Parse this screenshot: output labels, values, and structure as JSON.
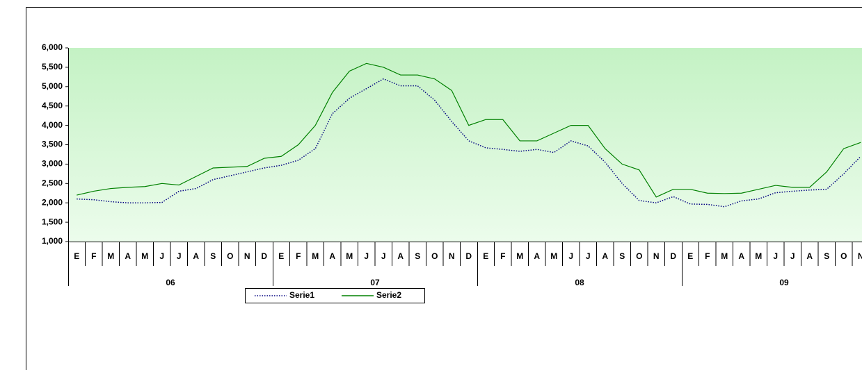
{
  "chart_data": {
    "type": "line",
    "categories": [
      "E",
      "F",
      "M",
      "A",
      "M",
      "J",
      "J",
      "A",
      "S",
      "O",
      "N",
      "D",
      "E",
      "F",
      "M",
      "A",
      "M",
      "J",
      "J",
      "A",
      "S",
      "O",
      "N",
      "D",
      "E",
      "F",
      "M",
      "A",
      "M",
      "J",
      "J",
      "A",
      "S",
      "O",
      "N",
      "D",
      "E",
      "F",
      "M",
      "A",
      "M",
      "J",
      "J",
      "A",
      "S",
      "O",
      "N"
    ],
    "groups": [
      "06",
      "07",
      "08",
      "09"
    ],
    "series": [
      {
        "name": "Serie1",
        "color": "#000080",
        "dash": "dotted",
        "values": [
          2100,
          2080,
          2030,
          2000,
          2000,
          2010,
          2300,
          2370,
          2600,
          2700,
          2800,
          2900,
          2970,
          3100,
          3400,
          4300,
          4700,
          4950,
          5200,
          5020,
          5020,
          4650,
          4100,
          3600,
          3420,
          3380,
          3330,
          3380,
          3300,
          3600,
          3470,
          3050,
          2500,
          2060,
          2000,
          2160,
          1970,
          1960,
          1900,
          2050,
          2100,
          2260,
          2300,
          2330,
          2350,
          2750,
          3200
        ]
      },
      {
        "name": "Serie2",
        "color": "#008000",
        "dash": "solid",
        "values": [
          2200,
          2300,
          2370,
          2400,
          2420,
          2500,
          2460,
          2680,
          2900,
          2920,
          2940,
          3150,
          3200,
          3500,
          4000,
          4850,
          5400,
          5600,
          5500,
          5300,
          5300,
          5200,
          4900,
          4000,
          4150,
          4150,
          3600,
          3600,
          3800,
          4000,
          4000,
          3400,
          3000,
          2850,
          2150,
          2350,
          2350,
          2250,
          2240,
          2250,
          2350,
          2450,
          2400,
          2400,
          2800,
          3400,
          3560
        ]
      }
    ],
    "ylim": [
      1000,
      6000
    ],
    "yticks": [
      {
        "value": 1000,
        "label": "1,000"
      },
      {
        "value": 1500,
        "label": "1,500"
      },
      {
        "value": 2000,
        "label": "2,000"
      },
      {
        "value": 2500,
        "label": "2,500"
      },
      {
        "value": 3000,
        "label": "3,000"
      },
      {
        "value": 3500,
        "label": "3,500"
      },
      {
        "value": 4000,
        "label": "4,000"
      },
      {
        "value": 4500,
        "label": "4,500"
      },
      {
        "value": 5000,
        "label": "5,000"
      },
      {
        "value": 5500,
        "label": "5,500"
      },
      {
        "value": 6000,
        "label": "6,000"
      }
    ],
    "grid": false,
    "legend": "bottom"
  }
}
